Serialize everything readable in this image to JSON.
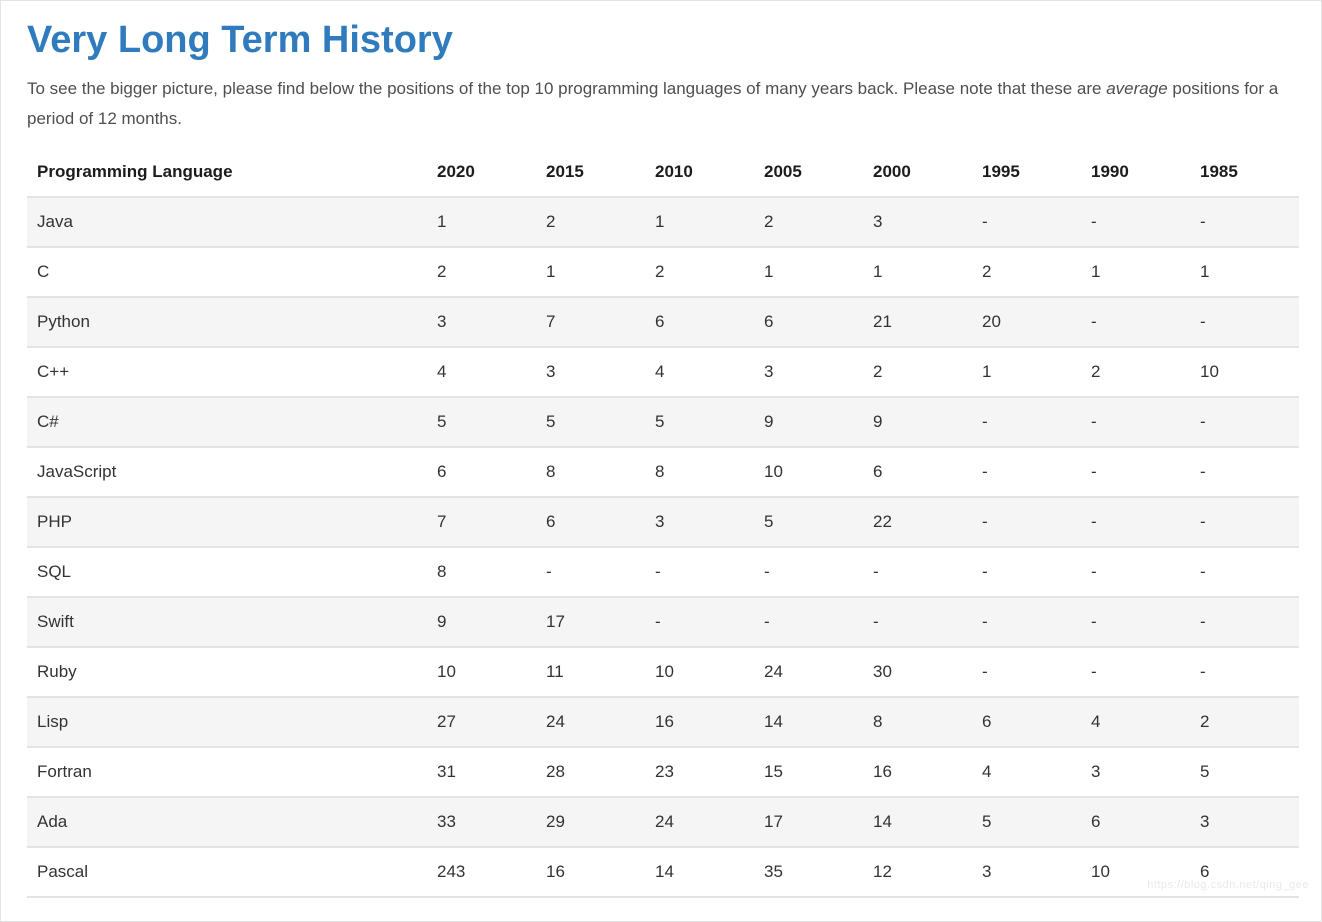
{
  "page": {
    "title": "Very Long Term History",
    "intro_before": "To see the bigger picture, please find below the positions of the top 10 programming languages of many years back. Please note that these are ",
    "intro_emphasis": "average",
    "intro_after": " positions for a period of 12 months.",
    "watermark": "https://blog.csdn.net/qing_gee"
  },
  "colors": {
    "title_blue": "#2f7bbd",
    "row_stripe": "#f5f5f5",
    "row_border": "#e3e3e3",
    "body_text": "#4f4f4f",
    "cell_text": "#333333"
  },
  "table": {
    "language_header": "Programming Language",
    "year_headers": [
      "2020",
      "2015",
      "2010",
      "2005",
      "2000",
      "1995",
      "1990",
      "1985"
    ],
    "rows": [
      {
        "name": "Java",
        "values": [
          "1",
          "2",
          "1",
          "2",
          "3",
          "-",
          "-",
          "-"
        ]
      },
      {
        "name": "C",
        "values": [
          "2",
          "1",
          "2",
          "1",
          "1",
          "2",
          "1",
          "1"
        ]
      },
      {
        "name": "Python",
        "values": [
          "3",
          "7",
          "6",
          "6",
          "21",
          "20",
          "-",
          "-"
        ]
      },
      {
        "name": "C++",
        "values": [
          "4",
          "3",
          "4",
          "3",
          "2",
          "1",
          "2",
          "10"
        ]
      },
      {
        "name": "C#",
        "values": [
          "5",
          "5",
          "5",
          "9",
          "9",
          "-",
          "-",
          "-"
        ]
      },
      {
        "name": "JavaScript",
        "values": [
          "6",
          "8",
          "8",
          "10",
          "6",
          "-",
          "-",
          "-"
        ]
      },
      {
        "name": "PHP",
        "values": [
          "7",
          "6",
          "3",
          "5",
          "22",
          "-",
          "-",
          "-"
        ]
      },
      {
        "name": "SQL",
        "values": [
          "8",
          "-",
          "-",
          "-",
          "-",
          "-",
          "-",
          "-"
        ]
      },
      {
        "name": "Swift",
        "values": [
          "9",
          "17",
          "-",
          "-",
          "-",
          "-",
          "-",
          "-"
        ]
      },
      {
        "name": "Ruby",
        "values": [
          "10",
          "11",
          "10",
          "24",
          "30",
          "-",
          "-",
          "-"
        ]
      },
      {
        "name": "Lisp",
        "values": [
          "27",
          "24",
          "16",
          "14",
          "8",
          "6",
          "4",
          "2"
        ]
      },
      {
        "name": "Fortran",
        "values": [
          "31",
          "28",
          "23",
          "15",
          "16",
          "4",
          "3",
          "5"
        ]
      },
      {
        "name": "Ada",
        "values": [
          "33",
          "29",
          "24",
          "17",
          "14",
          "5",
          "6",
          "3"
        ]
      },
      {
        "name": "Pascal",
        "values": [
          "243",
          "16",
          "14",
          "35",
          "12",
          "3",
          "10",
          "6"
        ]
      }
    ]
  }
}
